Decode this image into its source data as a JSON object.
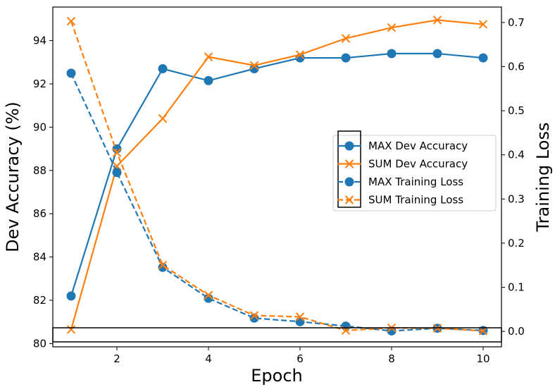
{
  "chart_data": {
    "type": "line",
    "xlabel": "Epoch",
    "ylabel_left": "Dev Accuracy (%)",
    "ylabel_right": "Training Loss",
    "x": [
      1,
      2,
      3,
      4,
      5,
      6,
      7,
      8,
      9,
      10
    ],
    "xlim": [
      0.6,
      10.4
    ],
    "xticks": [
      2,
      4,
      6,
      8,
      10
    ],
    "ylim_left": [
      79.85,
      95.55
    ],
    "yticks_left": [
      80,
      82,
      84,
      86,
      88,
      90,
      92,
      94
    ],
    "ylim_right": [
      -0.035,
      0.735
    ],
    "yticks_right": [
      0.0,
      0.1,
      0.2,
      0.3,
      0.4,
      0.5,
      0.6,
      0.7
    ],
    "legend_position": "center-right",
    "colors": {
      "blue": "#1f77b4",
      "orange": "#ff7f0e"
    },
    "series": [
      {
        "name": "MAX Dev Accuracy",
        "axis": "left",
        "color": "#1f77b4",
        "linestyle": "solid",
        "marker": "circle",
        "values": [
          82.2,
          89.0,
          92.7,
          92.15,
          92.7,
          93.2,
          93.2,
          93.4,
          93.4,
          93.2
        ]
      },
      {
        "name": "SUM Dev Accuracy",
        "axis": "left",
        "color": "#ff7f0e",
        "linestyle": "solid",
        "marker": "x",
        "values": [
          80.65,
          88.2,
          90.4,
          93.25,
          92.85,
          93.35,
          94.1,
          94.6,
          94.95,
          94.75
        ]
      },
      {
        "name": "MAX Training Loss",
        "axis": "right",
        "color": "#1f77b4",
        "linestyle": "dashed",
        "marker": "circle",
        "values": [
          0.585,
          0.36,
          0.145,
          0.075,
          0.03,
          0.022,
          0.012,
          0.001,
          0.007,
          0.002
        ]
      },
      {
        "name": "SUM Training Loss",
        "axis": "right",
        "color": "#ff7f0e",
        "linestyle": "dashed",
        "marker": "x",
        "values": [
          0.703,
          0.405,
          0.15,
          0.082,
          0.036,
          0.033,
          0.002,
          0.008,
          0.007,
          0.001
        ]
      }
    ]
  }
}
